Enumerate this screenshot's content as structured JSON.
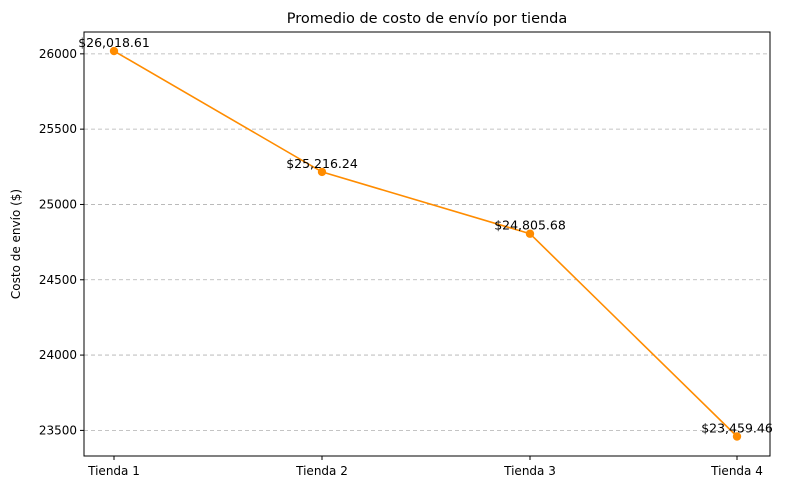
{
  "chart_data": {
    "type": "line",
    "title": "Promedio de costo de envío por tienda",
    "xlabel": "",
    "ylabel": "Costo de envío ($)",
    "categories": [
      "Tienda 1",
      "Tienda 2",
      "Tienda 3",
      "Tienda 4"
    ],
    "values": [
      26018.61,
      25216.24,
      24805.68,
      23459.46
    ],
    "data_labels": [
      "$26,018.61",
      "$25,216.24",
      "$24,805.68",
      "$23,459.46"
    ],
    "yticks": [
      23500,
      24000,
      24500,
      25000,
      25500,
      26000
    ],
    "ylim": [
      23330,
      26145
    ],
    "grid": "y-dashed",
    "color": "#ff8c00",
    "marker": "circle"
  }
}
